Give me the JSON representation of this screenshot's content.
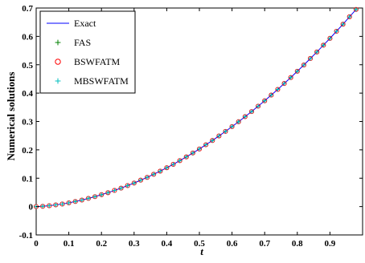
{
  "chart_data": {
    "type": "line",
    "title": "",
    "xlabel": "t",
    "ylabel": "Numerical solutions",
    "xlim": [
      0,
      1
    ],
    "ylim": [
      -0.1,
      0.7
    ],
    "x_ticks": [
      "0",
      "0.1",
      "0.2",
      "0.3",
      "0.4",
      "0.5",
      "0.6",
      "0.7",
      "0.8",
      "0.9"
    ],
    "y_ticks": [
      "-0.1",
      "0",
      "0.1",
      "0.2",
      "0.3",
      "0.4",
      "0.5",
      "0.6",
      "0.7"
    ],
    "grid": false,
    "legend_position": "top-left",
    "x": [
      0,
      0.02,
      0.04,
      0.06,
      0.08,
      0.1,
      0.12,
      0.14,
      0.16,
      0.18,
      0.2,
      0.22,
      0.24,
      0.26,
      0.28,
      0.3,
      0.32,
      0.34,
      0.36,
      0.38,
      0.4,
      0.42,
      0.44,
      0.46,
      0.48,
      0.5,
      0.52,
      0.54,
      0.56,
      0.58,
      0.6,
      0.62,
      0.64,
      0.66,
      0.68,
      0.7,
      0.72,
      0.74,
      0.76,
      0.78,
      0.8,
      0.82,
      0.84,
      0.86,
      0.88,
      0.9,
      0.92,
      0.94,
      0.96,
      0.98
    ],
    "series": [
      {
        "name": "Exact",
        "style": "line",
        "color": "#0000ff",
        "values": [
          0.0,
          0.001,
          0.003,
          0.006,
          0.009,
          0.013,
          0.018,
          0.023,
          0.029,
          0.035,
          0.042,
          0.049,
          0.057,
          0.065,
          0.074,
          0.083,
          0.093,
          0.103,
          0.114,
          0.125,
          0.137,
          0.149,
          0.162,
          0.175,
          0.189,
          0.203,
          0.218,
          0.233,
          0.249,
          0.265,
          0.282,
          0.299,
          0.317,
          0.335,
          0.354,
          0.373,
          0.393,
          0.413,
          0.434,
          0.455,
          0.477,
          0.499,
          0.522,
          0.545,
          0.569,
          0.593,
          0.618,
          0.643,
          0.669,
          0.695
        ]
      },
      {
        "name": "FAS",
        "style": "plus",
        "color": "#008000",
        "values": [
          0.0,
          0.001,
          0.003,
          0.006,
          0.009,
          0.013,
          0.018,
          0.023,
          0.029,
          0.035,
          0.042,
          0.049,
          0.057,
          0.065,
          0.074,
          0.083,
          0.093,
          0.103,
          0.114,
          0.125,
          0.137,
          0.149,
          0.162,
          0.175,
          0.189,
          0.203,
          0.218,
          0.233,
          0.249,
          0.265,
          0.282,
          0.299,
          0.317,
          0.335,
          0.354,
          0.373,
          0.393,
          0.413,
          0.434,
          0.455,
          0.477,
          0.499,
          0.522,
          0.545,
          0.569,
          0.593,
          0.618,
          0.643,
          0.669,
          0.695
        ]
      },
      {
        "name": "BSWFATM",
        "style": "circle",
        "color": "#ff0000",
        "values": [
          0.0,
          0.001,
          0.003,
          0.006,
          0.009,
          0.013,
          0.018,
          0.023,
          0.029,
          0.035,
          0.042,
          0.049,
          0.057,
          0.065,
          0.074,
          0.083,
          0.093,
          0.103,
          0.114,
          0.125,
          0.137,
          0.149,
          0.162,
          0.175,
          0.189,
          0.203,
          0.218,
          0.233,
          0.249,
          0.265,
          0.282,
          0.299,
          0.317,
          0.335,
          0.354,
          0.373,
          0.393,
          0.413,
          0.434,
          0.455,
          0.477,
          0.499,
          0.522,
          0.545,
          0.569,
          0.593,
          0.618,
          0.643,
          0.669,
          0.695
        ]
      },
      {
        "name": "MBSWFATM",
        "style": "plus",
        "color": "#00bfbf",
        "values": [
          0.0,
          0.001,
          0.003,
          0.006,
          0.009,
          0.013,
          0.018,
          0.023,
          0.029,
          0.035,
          0.042,
          0.049,
          0.057,
          0.065,
          0.074,
          0.083,
          0.093,
          0.103,
          0.114,
          0.125,
          0.137,
          0.149,
          0.162,
          0.175,
          0.189,
          0.203,
          0.218,
          0.233,
          0.249,
          0.265,
          0.282,
          0.299,
          0.317,
          0.335,
          0.354,
          0.373,
          0.393,
          0.413,
          0.434,
          0.455,
          0.477,
          0.499,
          0.522,
          0.545,
          0.569,
          0.593,
          0.618,
          0.643,
          0.669,
          0.695
        ]
      }
    ]
  }
}
